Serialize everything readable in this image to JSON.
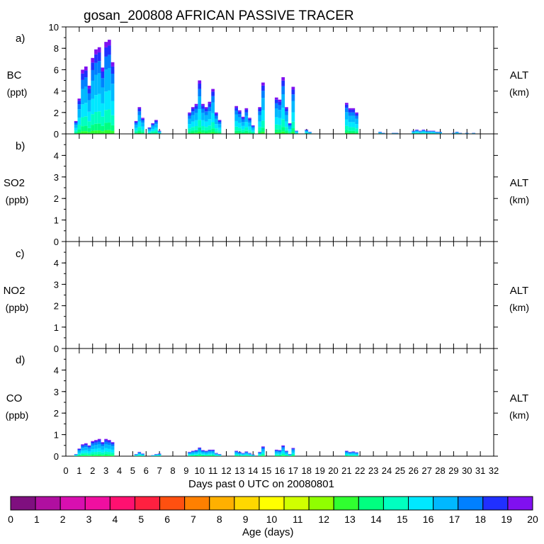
{
  "title": "gosan_200808 AFRICAN PASSIVE TRACER",
  "xlabel": "Days past 0 UTC on 20080801",
  "colorbar_label": "Age (days)",
  "colorbar_ticks": [
    "0",
    "1",
    "2",
    "3",
    "4",
    "5",
    "6",
    "7",
    "8",
    "9",
    "10",
    "11",
    "12",
    "13",
    "14",
    "15",
    "16",
    "17",
    "18",
    "19",
    "20"
  ],
  "colorbar_colors": [
    "#7f0f7f",
    "#b00fa0",
    "#d80fb0",
    "#f00fa0",
    "#ff1070",
    "#ff2040",
    "#ff5010",
    "#ff8000",
    "#ffb000",
    "#ffd800",
    "#ffff00",
    "#d0ff00",
    "#90ff00",
    "#30ff30",
    "#00ff80",
    "#00ffc0",
    "#00e8ff",
    "#00b8ff",
    "#0080ff",
    "#2030ff",
    "#8010f0"
  ],
  "x_ticks": [
    "0",
    "1",
    "2",
    "3",
    "4",
    "5",
    "6",
    "7",
    "8",
    "9",
    "10",
    "11",
    "12",
    "13",
    "14",
    "15",
    "16",
    "17",
    "18",
    "19",
    "20",
    "21",
    "22",
    "23",
    "24",
    "25",
    "26",
    "27",
    "28",
    "29",
    "30",
    "31",
    "32"
  ],
  "panels": [
    {
      "id": "a",
      "letter": "a)",
      "species": "BC",
      "units": "(ppt)",
      "alt": "ALT",
      "alt_units": "(km)",
      "ymax": 10,
      "yticks": [
        "0",
        "2",
        "4",
        "6",
        "8",
        "10"
      ]
    },
    {
      "id": "b",
      "letter": "b)",
      "species": "SO2",
      "units": "(ppb)",
      "alt": "ALT",
      "alt_units": "(km)",
      "ymax": 5,
      "yticks": [
        "0",
        "1",
        "2",
        "3",
        "4"
      ]
    },
    {
      "id": "c",
      "letter": "c)",
      "species": "NO2",
      "units": "(ppb)",
      "alt": "ALT",
      "alt_units": "(km)",
      "ymax": 5,
      "yticks": [
        "0",
        "1",
        "2",
        "3",
        "4"
      ]
    },
    {
      "id": "d",
      "letter": "d)",
      "species": "CO",
      "units": "(ppb)",
      "alt": "ALT",
      "alt_units": "(km)",
      "ymax": 5,
      "yticks": [
        "0",
        "1",
        "2",
        "3",
        "4"
      ]
    }
  ],
  "chart_data": [
    {
      "type": "bar",
      "title": "gosan_200808 AFRICAN PASSIVE TRACER",
      "panel": "a) BC",
      "xlabel": "Days past 0 UTC on 20080801",
      "ylabel": "BC (ppt)",
      "xlim": [
        0,
        32
      ],
      "ylim": [
        0,
        10
      ],
      "stacked_by": "Age (days)",
      "x": [
        0.75,
        1.0,
        1.25,
        1.5,
        1.75,
        2.0,
        2.25,
        2.5,
        2.75,
        3.0,
        3.25,
        3.5,
        5.25,
        5.5,
        5.75,
        6.25,
        6.5,
        6.75,
        7.0,
        9.25,
        9.5,
        9.75,
        10.0,
        10.25,
        10.5,
        10.75,
        11.0,
        11.25,
        11.5,
        12.75,
        13.0,
        13.25,
        13.5,
        13.75,
        14.0,
        14.5,
        14.75,
        15.75,
        16.0,
        16.25,
        16.5,
        16.75,
        17.0,
        17.25,
        18.0,
        18.25,
        21.0,
        21.25,
        21.5,
        21.75,
        23.5,
        23.75,
        24.5,
        24.75,
        26.0,
        26.25,
        26.5,
        26.75,
        27.0,
        27.25,
        27.5,
        27.75,
        28.0,
        29.0,
        29.25,
        29.5,
        30.0,
        30.5
      ],
      "values": [
        1.2,
        3.3,
        6.0,
        6.3,
        4.5,
        7.1,
        7.9,
        8.1,
        6.2,
        8.6,
        8.8,
        6.7,
        1.2,
        2.5,
        1.5,
        0.6,
        1.0,
        1.3,
        0.3,
        2.0,
        2.5,
        2.8,
        5.0,
        2.8,
        2.5,
        3.0,
        4.2,
        2.0,
        1.3,
        2.6,
        2.2,
        1.6,
        2.4,
        1.5,
        0.8,
        2.5,
        4.8,
        3.4,
        3.2,
        5.3,
        2.5,
        1.0,
        4.4,
        0.3,
        0.4,
        0.2,
        2.9,
        2.4,
        2.4,
        2.0,
        0.2,
        0.1,
        0.1,
        0.1,
        0.3,
        0.4,
        0.3,
        0.4,
        0.3,
        0.3,
        0.3,
        0.2,
        0.2,
        0.1,
        0.2,
        0.1,
        0.1,
        0.1
      ]
    },
    {
      "type": "bar",
      "panel": "b) SO2",
      "ylabel": "SO2 (ppb)",
      "xlim": [
        0,
        32
      ],
      "ylim": [
        0,
        5
      ],
      "x": [],
      "values": []
    },
    {
      "type": "bar",
      "panel": "c) NO2",
      "ylabel": "NO2 (ppb)",
      "xlim": [
        0,
        32
      ],
      "ylim": [
        0,
        5
      ],
      "x": [],
      "values": []
    },
    {
      "type": "bar",
      "panel": "d) CO",
      "xlabel": "Days past 0 UTC on 20080801",
      "ylabel": "CO (ppb)",
      "xlim": [
        0,
        32
      ],
      "ylim": [
        0,
        5
      ],
      "stacked_by": "Age (days)",
      "x": [
        0.75,
        1.0,
        1.25,
        1.5,
        1.75,
        2.0,
        2.25,
        2.5,
        2.75,
        3.0,
        3.25,
        3.5,
        5.25,
        5.5,
        5.75,
        6.5,
        6.75,
        7.0,
        9.25,
        9.5,
        9.75,
        10.0,
        10.25,
        10.5,
        10.75,
        11.0,
        11.25,
        11.5,
        12.75,
        13.0,
        13.25,
        13.5,
        13.75,
        14.0,
        14.5,
        14.75,
        15.75,
        16.0,
        16.25,
        16.5,
        16.75,
        17.0,
        21.0,
        21.25,
        21.5,
        21.75
      ],
      "values": [
        0.1,
        0.35,
        0.55,
        0.6,
        0.5,
        0.7,
        0.75,
        0.8,
        0.65,
        0.8,
        0.75,
        0.65,
        0.1,
        0.2,
        0.12,
        0.05,
        0.1,
        0.12,
        0.2,
        0.25,
        0.28,
        0.4,
        0.28,
        0.25,
        0.3,
        0.3,
        0.15,
        0.1,
        0.25,
        0.2,
        0.15,
        0.22,
        0.15,
        0.08,
        0.2,
        0.45,
        0.3,
        0.28,
        0.5,
        0.25,
        0.1,
        0.38,
        0.25,
        0.2,
        0.22,
        0.18
      ]
    }
  ]
}
